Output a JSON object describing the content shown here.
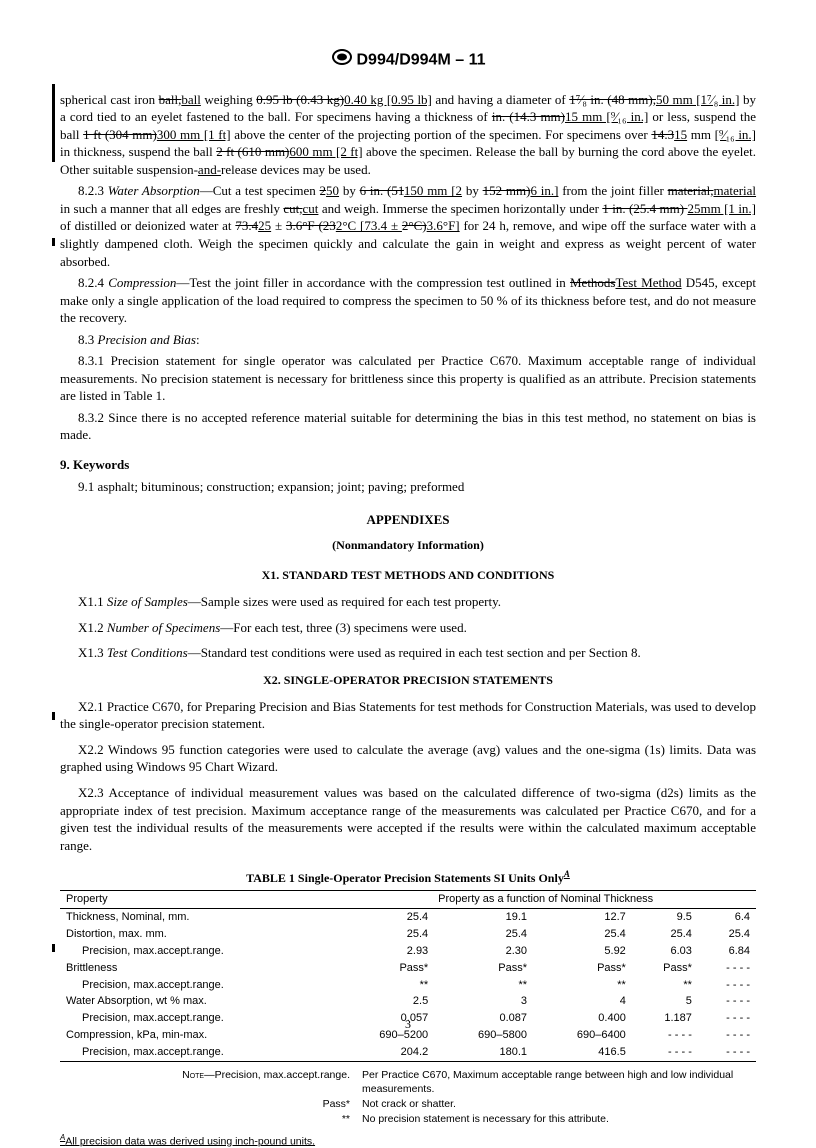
{
  "header": {
    "doc_id": "D994/D994M – 11"
  },
  "body": {
    "p1_a": "spherical cast iron ",
    "p1_ball_strike": "ball,",
    "p1_ball_new": "ball",
    "p1_b": " weighing ",
    "p1_w_strike": "0.95 lb (0.43 kg)",
    "p1_w_new": "0.40 kg [0.95 lb]",
    "p1_c": " and having a diameter of ",
    "p1_d_strike": "1⁷⁄₈ in. (48 mm),",
    "p1_d_new": "50 mm [1⁷⁄₈ in.]",
    "p1_d2": " by a cord tied to an eyelet fastened to the ball. For specimens having a thickness of ",
    "p1_t_strike": "in. (14.3 mm)",
    "p1_t_new": "15 mm [⁹⁄₁₆ in.]",
    "p1_e": " or less, suspend the ball ",
    "p1_s1_strike": "1 ft (304 mm)",
    "p1_s1_new": "300 mm [1 ft]",
    "p1_f": " above the center of the projecting portion of the specimen. For specimens over ",
    "p1_ov_strike": "14.3",
    "p1_ov_new": "15",
    "p1_g": " mm ",
    "p1_in_new": "[⁹⁄₁₆ in.]",
    "p1_h": " in thickness, suspend the ball ",
    "p1_s2_strike": "2 ft (610 mm)",
    "p1_s2_new": "600 mm [2 ft]",
    "p1_i": " above the specimen. Release the ball by burning the cord above the eyelet. Other suitable suspension-",
    "p1_and_new": "and-",
    "p1_j": "release devices may be used.",
    "p823_num": "8.2.3 ",
    "p823_title": "Water Absorption",
    "p823_a": "—Cut a test specimen ",
    "p823_s1_strike": "2",
    "p823_s1_new": "50",
    "p823_b": " by ",
    "p823_s2_strike": "6 in. (51",
    "p823_s2_new": "150 mm [2",
    "p823_c": " by ",
    "p823_s3_strike": "152 mm)",
    "p823_s3_new": "6 in.]",
    "p823_d": " from the joint filler ",
    "p823_mat_strike": "material,",
    "p823_mat_new": "material",
    "p823_e": " in such a manner that all edges are freshly ",
    "p823_cut_strike": "cut,",
    "p823_cut_new": "cut",
    "p823_f": " and weigh. Immerse the specimen horizontally under ",
    "p823_u_strike": "1 in. (25.4 mm) ",
    "p823_u_new": "25mm [1 in.] ",
    "p823_g": "of distilled or deionized water at ",
    "p823_tmp_strike": "73.4",
    "p823_tmp_new": "25",
    "p823_h": " ± ",
    "p823_tol_strike": "3.6°F (23",
    "p823_tol_new": "2°C [73.4 ± ",
    "p823_tol2_strike": "2°C)",
    "p823_tol2_new": "3.6°F]",
    "p823_i": " for 24 h, remove, and wipe off the surface water with a slightly dampened cloth. Weigh the specimen quickly and calculate the gain in weight and express as weight percent of water absorbed.",
    "p824_num": "8.2.4 ",
    "p824_title": "Compression",
    "p824_a": "—Test the joint filler in accordance with the compression test outlined in ",
    "p824_strike": "Methods",
    "p824_new": "Test Method",
    "p824_b": " D545, except make only a single application of the load required to compress the specimen to 50 % of its thickness before test, and do not measure the recovery.",
    "p83": "8.3 ",
    "p83_title": "Precision and Bias",
    "p831": "8.3.1 Precision statement for single operator was calculated per Practice C670. Maximum acceptable range of individual measurements. No precision statement is necessary for brittleness since this property is qualified as an attribute. Precision statements are listed in Table 1.",
    "p832": "8.3.2 Since there is no accepted reference material suitable for determining the bias in this test method, no statement on bias is made.",
    "s9": "9. Keywords",
    "s91": "9.1 asphalt; bituminous; construction; expansion; joint; paving; preformed",
    "appendix": "APPENDIXES",
    "nonmand": "(Nonmandatory Information)",
    "x1_head": "X1.  STANDARD TEST METHODS AND CONDITIONS",
    "x11": "X1.1 ",
    "x11_t": "Size of Samples",
    "x11_b": "—Sample sizes were used as required for each test property.",
    "x12": "X1.2 ",
    "x12_t": "Number of Specimens",
    "x12_b": "—For each test, three (3) specimens were used.",
    "x13": "X1.3 ",
    "x13_t": "Test Conditions",
    "x13_b": "—Standard test conditions were used as required in each test section and per Section 8.",
    "x2_head": "X2.  SINGLE-OPERATOR PRECISION STATEMENTS",
    "x21": "X2.1  Practice C670, for Preparing Precision and Bias Statements for test methods for Construction Materials, was used to develop the single-operator precision statement.",
    "x22": "X2.2  Windows 95 function categories were used to calculate the average (avg) values and the one-sigma (1s) limits. Data was graphed using Windows 95 Chart Wizard.",
    "x23": "X2.3  Acceptance of individual measurement values was based on the calculated difference of two-sigma (d2s) limits as the appropriate index of test precision. Maximum acceptance range of the measurements was calculated per Practice C670, and for a given test the individual results of the measurements were accepted if the results were within the calculated maximum acceptable range.",
    "table": {
      "title": "TABLE 1  Single-Operator Precision Statements SI Units Only",
      "superA": "A",
      "col_prop": "Property",
      "col_span": "Property as a function of Nominal Thickness",
      "rows": [
        {
          "prop": "Thickness, Nominal, mm.",
          "v": [
            "25.4",
            "19.1",
            "12.7",
            "9.5",
            "6.4"
          ]
        },
        {
          "prop": "Distortion, max. mm.",
          "v": [
            "25.4",
            "25.4",
            "25.4",
            "25.4",
            "25.4"
          ]
        },
        {
          "prop": "Precision, max.accept.range.",
          "indent": true,
          "v": [
            "2.93",
            "2.30",
            "5.92",
            "6.03",
            "6.84"
          ]
        },
        {
          "prop": "Brittleness",
          "v": [
            "Pass*",
            "Pass*",
            "Pass*",
            "Pass*",
            "- - - -"
          ]
        },
        {
          "prop": "Precision, max.accept.range.",
          "indent": true,
          "v": [
            "**",
            "**",
            "**",
            "**",
            "- - - -"
          ]
        },
        {
          "prop": "Water Absorption, wt % max.",
          "v": [
            "2.5",
            "3",
            "4",
            "5",
            "- - - -"
          ]
        },
        {
          "prop": "Precision, max.accept.range.",
          "indent": true,
          "v": [
            "0.057",
            "0.087",
            "0.400",
            "1.187",
            "- - - -"
          ]
        },
        {
          "prop": "Compression, kPa, min-max.",
          "v": [
            "690–5200",
            "690–5800",
            "690–6400",
            "- - - -",
            "- - - -"
          ]
        },
        {
          "prop": "Precision, max.accept.range.",
          "indent": true,
          "v": [
            "204.2",
            "180.1",
            "416.5",
            "- - - -",
            "- - - -"
          ]
        }
      ],
      "notes": [
        {
          "lab": "NOTE—Precision, max.accept.range.",
          "val": "Per Practice C670, Maximum acceptable range between high and low individual measurements."
        },
        {
          "lab": "Pass*",
          "val": "Not crack or shatter."
        },
        {
          "lab": "**",
          "val": "No precision statement is necessary for this attribute."
        }
      ],
      "footA": "All precision data was derived using inch-pound units."
    },
    "pagenum": "3"
  }
}
